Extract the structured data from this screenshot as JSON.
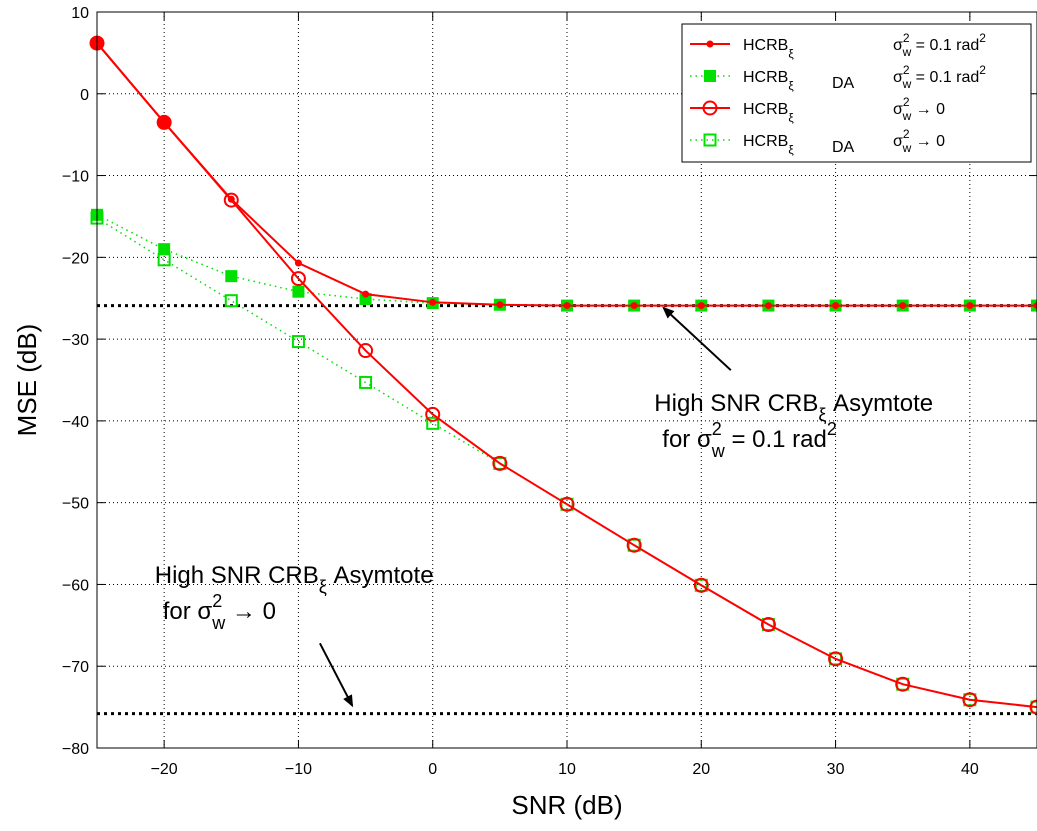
{
  "chart_data": {
    "type": "line",
    "xlabel": "SNR (dB)",
    "ylabel": "MSE (dB)",
    "xlim": [
      -25,
      45
    ],
    "ylim": [
      -80,
      10
    ],
    "xticks": [
      -20,
      -10,
      0,
      10,
      20,
      30,
      40
    ],
    "yticks": [
      10,
      0,
      -10,
      -20,
      -30,
      -40,
      -50,
      -60,
      -70,
      -80
    ],
    "xtick_labels": [
      "−20",
      "−10",
      "0",
      "10",
      "20",
      "30",
      "40"
    ],
    "ytick_labels": [
      "10",
      "0",
      "−10",
      "−20",
      "−30",
      "−40",
      "−50",
      "−60",
      "−70",
      "−80"
    ],
    "grid": true,
    "legend_position": "top-right",
    "x": [
      -25,
      -20,
      -15,
      -10,
      -5,
      0,
      5,
      10,
      15,
      20,
      25,
      30,
      35,
      40,
      45
    ],
    "series": [
      {
        "name_main": "HCRB",
        "name_sub": "ξ",
        "name_tag": "",
        "cond_sym": "σ",
        "cond_sup": "2",
        "cond_sub": "w",
        "cond_rest": " = 0.1 rad",
        "cond_end_sup": "2",
        "color": "#ff0000",
        "line_style": "solid",
        "marker": "dot",
        "values": [
          6.2,
          -3.5,
          -12.9,
          -20.7,
          -24.5,
          -25.5,
          -25.8,
          -25.9,
          -25.9,
          -25.9,
          -25.9,
          -25.9,
          -25.9,
          -25.9,
          -25.9
        ]
      },
      {
        "name_main": "HCRB",
        "name_sub": "ξ",
        "name_tag": "DA",
        "cond_sym": "σ",
        "cond_sup": "2",
        "cond_sub": "w",
        "cond_rest": " = 0.1 rad",
        "cond_end_sup": "2",
        "color": "#00e000",
        "line_style": "dotted",
        "marker": "filled-square",
        "values": [
          -14.8,
          -19.0,
          -22.3,
          -24.2,
          -25.1,
          -25.6,
          -25.8,
          -25.9,
          -25.9,
          -25.9,
          -25.9,
          -25.9,
          -25.9,
          -25.9,
          -25.9
        ]
      },
      {
        "name_main": "HCRB",
        "name_sub": "ξ",
        "name_tag": "",
        "cond_sym": "σ",
        "cond_sup": "2",
        "cond_sub": "w",
        "cond_rest": " → 0",
        "cond_end_sup": "",
        "color": "#ff0000",
        "line_style": "solid",
        "marker": "open-circle",
        "values": [
          6.2,
          -3.5,
          -13.0,
          -22.6,
          -31.4,
          -39.2,
          -45.2,
          -50.2,
          -55.2,
          -60.1,
          -64.9,
          -69.1,
          -72.2,
          -74.1,
          -75.0
        ]
      },
      {
        "name_main": "HCRB",
        "name_sub": "ξ",
        "name_tag": "DA",
        "cond_sym": "σ",
        "cond_sup": "2",
        "cond_sub": "w",
        "cond_rest": " → 0",
        "cond_end_sup": "",
        "color": "#00e000",
        "line_style": "dotted",
        "marker": "open-square",
        "values": [
          -15.2,
          -20.3,
          -25.3,
          -30.3,
          -35.3,
          -40.3,
          -45.2,
          -50.2,
          -55.2,
          -60.1,
          -64.9,
          -69.1,
          -72.2,
          -74.1,
          -75.0
        ]
      }
    ],
    "asymptotes": [
      -25.9,
      -75.8
    ],
    "annotations": [
      {
        "line1_main": "High SNR CRB",
        "line1_sub": "ξ",
        "line1_rest": " Asymtote",
        "line2_pre": "for ",
        "line2_sym": "σ",
        "line2_sup": "2",
        "line2_sub": "w",
        "line2_rest": " = 0.1 rad",
        "line2_end_sup": "2",
        "text_x": 16.5,
        "text_y": -38.8,
        "arrow_from": [
          22.2,
          -33.8
        ],
        "arrow_to": [
          17.2,
          -26.2
        ]
      },
      {
        "line1_main": "High SNR CRB",
        "line1_sub": "ξ",
        "line1_rest": " Asymtote",
        "line2_pre": "for ",
        "line2_sym": "σ",
        "line2_sup": "2",
        "line2_sub": "w",
        "line2_rest": " → 0",
        "line2_end_sup": "",
        "text_x": -20.7,
        "text_y": -59.8,
        "arrow_from": [
          -8.4,
          -67.2
        ],
        "arrow_to": [
          -6.0,
          -74.8
        ]
      }
    ]
  }
}
